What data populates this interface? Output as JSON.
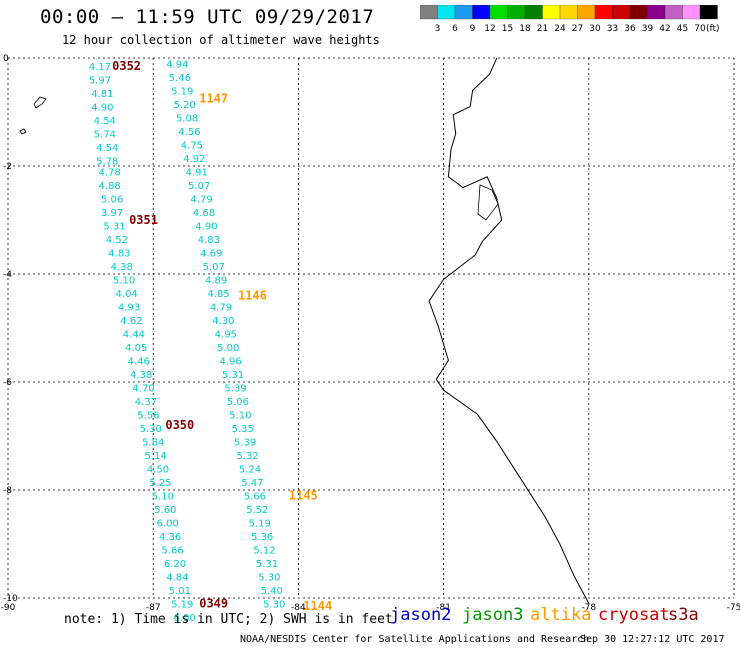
{
  "title": "00:00 – 11:59 UTC 09/29/2017",
  "subtitle": "12 hour collection of altimeter wave heights",
  "legend": {
    "labels": [
      "3",
      "6",
      "9",
      "12",
      "15",
      "18",
      "21",
      "24",
      "27",
      "30",
      "33",
      "36",
      "39",
      "42",
      "45",
      "70"
    ],
    "unit": "(ft)",
    "colors": [
      "#808080",
      "#00e5ee",
      "#1c9cf0",
      "#0000ff",
      "#00dd00",
      "#00b000",
      "#008000",
      "#ffff00",
      "#ffd700",
      "#ffa500",
      "#ff0000",
      "#cc0000",
      "#800000",
      "#8b008b",
      "#c060c0",
      "#ff90ff",
      "#000000"
    ]
  },
  "axes": {
    "x_ticks": [
      "-90",
      "-87",
      "-84",
      "-81",
      "-78",
      "-75"
    ],
    "y_ticks": [
      "0",
      "-2",
      "-4",
      "-6",
      "-8",
      "-10"
    ]
  },
  "colors": {
    "wave": "#00cccc",
    "time_dark": "#800000",
    "time_orange": "#ff9900"
  },
  "track_west": [
    {
      "lon": -88.1,
      "lat": -0.15,
      "v": "4.17"
    },
    {
      "lon": -88.1,
      "lat": -0.4,
      "v": "5.97"
    },
    {
      "lon": -88.05,
      "lat": -0.65,
      "v": "4.81"
    },
    {
      "lon": -88.05,
      "lat": -0.9,
      "v": "4.90"
    },
    {
      "lon": -88.0,
      "lat": -1.15,
      "v": "4.54"
    },
    {
      "lon": -88.0,
      "lat": -1.4,
      "v": "5.74"
    },
    {
      "lon": -87.95,
      "lat": -1.65,
      "v": "4.54"
    },
    {
      "lon": -87.95,
      "lat": -1.9,
      "v": "5.78"
    },
    {
      "lon": -87.9,
      "lat": -2.1,
      "v": "4.78"
    },
    {
      "lon": -87.9,
      "lat": -2.35,
      "v": "4.88"
    },
    {
      "lon": -87.85,
      "lat": -2.6,
      "v": "5.06"
    },
    {
      "lon": -87.85,
      "lat": -2.85,
      "v": "3.97"
    },
    {
      "lon": -87.8,
      "lat": -3.1,
      "v": "5.31"
    },
    {
      "lon": -87.75,
      "lat": -3.35,
      "v": "4.52"
    },
    {
      "lon": -87.7,
      "lat": -3.6,
      "v": "4.83"
    },
    {
      "lon": -87.65,
      "lat": -3.85,
      "v": "4.38"
    },
    {
      "lon": -87.6,
      "lat": -4.1,
      "v": "5.10"
    },
    {
      "lon": -87.55,
      "lat": -4.35,
      "v": "4.04"
    },
    {
      "lon": -87.5,
      "lat": -4.6,
      "v": "4.93"
    },
    {
      "lon": -87.45,
      "lat": -4.85,
      "v": "4.62"
    },
    {
      "lon": -87.4,
      "lat": -5.1,
      "v": "4.44"
    },
    {
      "lon": -87.35,
      "lat": -5.35,
      "v": "4.05"
    },
    {
      "lon": -87.3,
      "lat": -5.6,
      "v": "4.46"
    },
    {
      "lon": -87.25,
      "lat": -5.85,
      "v": "4.38"
    },
    {
      "lon": -87.2,
      "lat": -6.1,
      "v": "4.70"
    },
    {
      "lon": -87.15,
      "lat": -6.35,
      "v": "4.37"
    },
    {
      "lon": -87.1,
      "lat": -6.6,
      "v": "5.56"
    },
    {
      "lon": -87.05,
      "lat": -6.85,
      "v": "5.30"
    },
    {
      "lon": -87.0,
      "lat": -7.1,
      "v": "5.84"
    },
    {
      "lon": -86.95,
      "lat": -7.35,
      "v": "5.14"
    },
    {
      "lon": -86.9,
      "lat": -7.6,
      "v": "4.50"
    },
    {
      "lon": -86.85,
      "lat": -7.85,
      "v": "5.25"
    },
    {
      "lon": -86.8,
      "lat": -8.1,
      "v": "5.10"
    },
    {
      "lon": -86.75,
      "lat": -8.35,
      "v": "5.60"
    },
    {
      "lon": -86.7,
      "lat": -8.6,
      "v": "6.00"
    },
    {
      "lon": -86.65,
      "lat": -8.85,
      "v": "4.36"
    },
    {
      "lon": -86.6,
      "lat": -9.1,
      "v": "5.66"
    },
    {
      "lon": -86.55,
      "lat": -9.35,
      "v": "6.20"
    },
    {
      "lon": -86.5,
      "lat": -9.6,
      "v": "4.84"
    },
    {
      "lon": -86.45,
      "lat": -9.85,
      "v": "5.01"
    },
    {
      "lon": -86.4,
      "lat": -10.1,
      "v": "5.19"
    },
    {
      "lon": -86.35,
      "lat": -10.35,
      "v": "6.00"
    }
  ],
  "track_east": [
    {
      "lon": -86.5,
      "lat": -0.1,
      "v": "4.94"
    },
    {
      "lon": -86.45,
      "lat": -0.35,
      "v": "5.46"
    },
    {
      "lon": -86.4,
      "lat": -0.6,
      "v": "5.19"
    },
    {
      "lon": -86.35,
      "lat": -0.85,
      "v": "5.20"
    },
    {
      "lon": -86.3,
      "lat": -1.1,
      "v": "5.08"
    },
    {
      "lon": -86.25,
      "lat": -1.35,
      "v": "4.56"
    },
    {
      "lon": -86.2,
      "lat": -1.6,
      "v": "4.75"
    },
    {
      "lon": -86.15,
      "lat": -1.85,
      "v": "4.92"
    },
    {
      "lon": -86.1,
      "lat": -2.1,
      "v": "4.91"
    },
    {
      "lon": -86.05,
      "lat": -2.35,
      "v": "5.07"
    },
    {
      "lon": -86.0,
      "lat": -2.6,
      "v": "4.79"
    },
    {
      "lon": -85.95,
      "lat": -2.85,
      "v": "4.68"
    },
    {
      "lon": -85.9,
      "lat": -3.1,
      "v": "4.90"
    },
    {
      "lon": -85.85,
      "lat": -3.35,
      "v": "4.83"
    },
    {
      "lon": -85.8,
      "lat": -3.6,
      "v": "4.69"
    },
    {
      "lon": -85.75,
      "lat": -3.85,
      "v": "5.07"
    },
    {
      "lon": -85.7,
      "lat": -4.1,
      "v": "4.89"
    },
    {
      "lon": -85.65,
      "lat": -4.35,
      "v": "4.85"
    },
    {
      "lon": -85.6,
      "lat": -4.6,
      "v": "4.79"
    },
    {
      "lon": -85.55,
      "lat": -4.85,
      "v": "4.30"
    },
    {
      "lon": -85.5,
      "lat": -5.1,
      "v": "4.95"
    },
    {
      "lon": -85.45,
      "lat": -5.35,
      "v": "5.00"
    },
    {
      "lon": -85.4,
      "lat": -5.6,
      "v": "4.96"
    },
    {
      "lon": -85.35,
      "lat": -5.85,
      "v": "5.31"
    },
    {
      "lon": -85.3,
      "lat": -6.1,
      "v": "5.39"
    },
    {
      "lon": -85.25,
      "lat": -6.35,
      "v": "5.06"
    },
    {
      "lon": -85.2,
      "lat": -6.6,
      "v": "5.10"
    },
    {
      "lon": -85.15,
      "lat": -6.85,
      "v": "5.35"
    },
    {
      "lon": -85.1,
      "lat": -7.1,
      "v": "5.39"
    },
    {
      "lon": -85.05,
      "lat": -7.35,
      "v": "5.32"
    },
    {
      "lon": -85.0,
      "lat": -7.6,
      "v": "5.24"
    },
    {
      "lon": -84.95,
      "lat": -7.85,
      "v": "5.47"
    },
    {
      "lon": -84.9,
      "lat": -8.1,
      "v": "5.66"
    },
    {
      "lon": -84.85,
      "lat": -8.35,
      "v": "5.52"
    },
    {
      "lon": -84.8,
      "lat": -8.6,
      "v": "5.19"
    },
    {
      "lon": -84.75,
      "lat": -8.85,
      "v": "5.36"
    },
    {
      "lon": -84.7,
      "lat": -9.1,
      "v": "5.12"
    },
    {
      "lon": -84.65,
      "lat": -9.35,
      "v": "5.31"
    },
    {
      "lon": -84.6,
      "lat": -9.6,
      "v": "5.30"
    },
    {
      "lon": -84.55,
      "lat": -9.85,
      "v": "5.40"
    },
    {
      "lon": -84.5,
      "lat": -10.1,
      "v": "5.30"
    }
  ],
  "time_marks": [
    {
      "lon": -87.55,
      "lat": -0.15,
      "v": "0352",
      "style": "time_dark"
    },
    {
      "lon": -87.2,
      "lat": -3.0,
      "v": "0351",
      "style": "time_dark"
    },
    {
      "lon": -86.45,
      "lat": -6.8,
      "v": "0350",
      "style": "time_dark"
    },
    {
      "lon": -85.75,
      "lat": -10.1,
      "v": "0349",
      "style": "time_dark"
    },
    {
      "lon": -85.75,
      "lat": -0.75,
      "v": "1147",
      "style": "time_orange"
    },
    {
      "lon": -84.95,
      "lat": -4.4,
      "v": "1146",
      "style": "time_orange"
    },
    {
      "lon": -83.9,
      "lat": -8.1,
      "v": "1145",
      "style": "time_orange"
    },
    {
      "lon": -83.6,
      "lat": -10.15,
      "v": "1144",
      "style": "time_orange"
    }
  ],
  "footer": {
    "note": "note: 1) Time is in UTC; 2) SWH is in feet",
    "satellites": [
      {
        "name": "jason2",
        "color": "#0000cc"
      },
      {
        "name": "jason3",
        "color": "#009900"
      },
      {
        "name": "altika",
        "color": "#ff9900"
      },
      {
        "name": "cryosat",
        "color": "#cc0000"
      },
      {
        "name": "s3a",
        "color": "#800000"
      }
    ],
    "credit": "NOAA/NESDIS Center for Satellite Applications and Research",
    "stamp": "Sep 30 12:27:12 UTC 2017"
  }
}
